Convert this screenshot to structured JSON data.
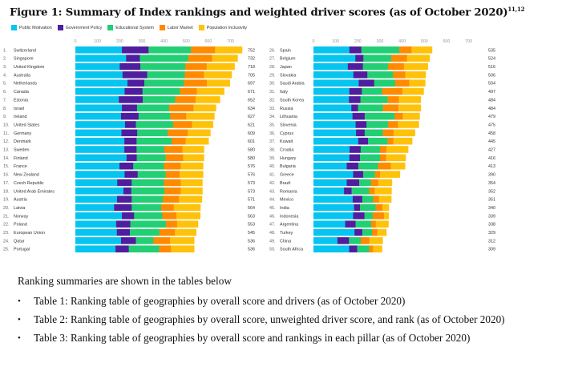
{
  "figure": {
    "title": "Figure 1: Summary of Index rankings and weighted driver scores (as of October 2020)",
    "footnote_refs": "11,12"
  },
  "legend": [
    {
      "name": "Public Motivation",
      "color": "#06c4f0"
    },
    {
      "name": "Government Policy",
      "color": "#4f1e9e"
    },
    {
      "name": "Educational System",
      "color": "#22cf74"
    },
    {
      "name": "Labor Market",
      "color": "#ff8a00"
    },
    {
      "name": "Population Inclusivity",
      "color": "#ffc20a"
    }
  ],
  "chart_data": {
    "type": "bar",
    "orientation": "horizontal",
    "stacked": true,
    "title": "Figure 1: Summary of Index rankings and weighted driver scores (as of October 2020)",
    "xlim": [
      0,
      700
    ],
    "xticks": [
      0,
      100,
      200,
      300,
      400,
      500,
      600,
      700
    ],
    "grid": false,
    "legend_position": "top-left",
    "series_names": [
      "Public Motivation",
      "Government Policy",
      "Educational System",
      "Labor Market",
      "Population Inclusivity"
    ],
    "panels": [
      {
        "rows": [
          {
            "rank": "1.",
            "name": "Switzerland",
            "total": 752,
            "values": [
              210,
              120,
              191,
              109,
              122
            ]
          },
          {
            "rank": "2.",
            "name": "Singapore",
            "total": 732,
            "values": [
              229,
              62,
              218,
              108,
              115
            ]
          },
          {
            "rank": "3.",
            "name": "United Kingdom",
            "total": 718,
            "values": [
              200,
              93,
              203,
              96,
              126
            ]
          },
          {
            "rank": "4.",
            "name": "Australia",
            "total": 705,
            "values": [
              213,
              111,
              169,
              87,
              125
            ]
          },
          {
            "rank": "5.",
            "name": "Netherlands",
            "total": 697,
            "values": [
              235,
              76,
              178,
              104,
              104
            ]
          },
          {
            "rank": "6.",
            "name": "Canada",
            "total": 671,
            "values": [
              222,
              81,
              168,
              77,
              123
            ]
          },
          {
            "rank": "7.",
            "name": "Estonia",
            "total": 652,
            "values": [
              196,
              108,
              146,
              92,
              110
            ]
          },
          {
            "rank": "8.",
            "name": "Israel",
            "total": 634,
            "values": [
              210,
              68,
              145,
              110,
              101
            ]
          },
          {
            "rank": "9.",
            "name": "Ireland",
            "total": 627,
            "values": [
              206,
              79,
              143,
              72,
              127
            ]
          },
          {
            "rank": "10.",
            "name": "United States",
            "total": 621,
            "values": [
              224,
              49,
              168,
              85,
              95
            ]
          },
          {
            "rank": "11.",
            "name": "Germany",
            "total": 609,
            "values": [
              208,
              71,
              137,
              91,
              102
            ]
          },
          {
            "rank": "12.",
            "name": "Denmark",
            "total": 601,
            "values": [
              221,
              55,
              158,
              63,
              104
            ]
          },
          {
            "rank": "13.",
            "name": "Sweden",
            "total": 580,
            "values": [
              221,
              55,
              125,
              82,
              97
            ]
          },
          {
            "rank": "14.",
            "name": "Finland",
            "total": 580,
            "values": [
              231,
              46,
              130,
              79,
              94
            ]
          },
          {
            "rank": "15.",
            "name": "France",
            "total": 576,
            "values": [
              199,
              62,
              138,
              76,
              101
            ]
          },
          {
            "rank": "16.",
            "name": "New Zealand",
            "total": 576,
            "values": [
              222,
              59,
              126,
              63,
              106
            ]
          },
          {
            "rank": "17.",
            "name": "Czech Republic",
            "total": 573,
            "values": [
              189,
              65,
              145,
              76,
              98
            ]
          },
          {
            "rank": "18.",
            "name": "United Arab Emirates",
            "total": 573,
            "values": [
              217,
              35,
              150,
              73,
              98
            ]
          },
          {
            "rank": "19.",
            "name": "Austria",
            "total": 571,
            "values": [
              188,
              66,
              140,
              73,
              104
            ]
          },
          {
            "rank": "20.",
            "name": "Latvia",
            "total": 564,
            "values": [
              175,
              79,
              133,
              57,
              120
            ]
          },
          {
            "rank": "21.",
            "name": "Norway",
            "total": 563,
            "values": [
              210,
              55,
              127,
              64,
              107
            ]
          },
          {
            "rank": "22.",
            "name": "Poland",
            "total": 553,
            "values": [
              184,
              64,
              160,
              51,
              94
            ]
          },
          {
            "rank": "23.",
            "name": "European Union",
            "total": 545,
            "values": [
              187,
              59,
              133,
              70,
              96
            ]
          },
          {
            "rank": "24.",
            "name": "Qatar",
            "total": 536,
            "values": [
              206,
              67,
              79,
              75,
              109
            ]
          },
          {
            "rank": "25.",
            "name": "Portugal",
            "total": 536,
            "values": [
              181,
              60,
              137,
              53,
              105
            ]
          }
        ]
      },
      {
        "rows": [
          {
            "rank": "26.",
            "name": "Spain",
            "total": 535,
            "values": [
              162,
              54,
              171,
              55,
              93
            ]
          },
          {
            "rank": "27.",
            "name": "Belgium",
            "total": 524,
            "values": [
              189,
              36,
              126,
              71,
              102
            ]
          },
          {
            "rank": "28.",
            "name": "Japan",
            "total": 516,
            "values": [
              155,
              68,
              113,
              72,
              108
            ]
          },
          {
            "rank": "29.",
            "name": "Slovakia",
            "total": 506,
            "values": [
              180,
              63,
              116,
              55,
              92
            ]
          },
          {
            "rank": "30.",
            "name": "Saudi Arabia",
            "total": 504,
            "values": [
              204,
              70,
              94,
              64,
              72
            ]
          },
          {
            "rank": "31.",
            "name": "Italy",
            "total": 497,
            "values": [
              162,
              56,
              92,
              91,
              96
            ]
          },
          {
            "rank": "32.",
            "name": "South Korea",
            "total": 484,
            "values": [
              160,
              52,
              122,
              51,
              99
            ]
          },
          {
            "rank": "33.",
            "name": "Russia",
            "total": 484,
            "values": [
              171,
              30,
              112,
              70,
              101
            ]
          },
          {
            "rank": "34.",
            "name": "Lithuania",
            "total": 479,
            "values": [
              176,
              55,
              134,
              38,
              76
            ]
          },
          {
            "rank": "35.",
            "name": "Slovenia",
            "total": 475,
            "values": [
              190,
              49,
              97,
              45,
              94
            ]
          },
          {
            "rank": "36.",
            "name": "Cyprus",
            "total": 458,
            "values": [
              192,
              39,
              82,
              48,
              97
            ]
          },
          {
            "rank": "37.",
            "name": "Kuwait",
            "total": 445,
            "values": [
              202,
              44,
              88,
              26,
              85
            ]
          },
          {
            "rank": "38.",
            "name": "Croatia",
            "total": 427,
            "values": [
              163,
              50,
              87,
              29,
              98
            ]
          },
          {
            "rank": "39.",
            "name": "Hungary",
            "total": 416,
            "values": [
              162,
              48,
              90,
              27,
              89
            ]
          },
          {
            "rank": "40.",
            "name": "Bulgaria",
            "total": 413,
            "values": [
              150,
              52,
              89,
              58,
              64
            ]
          },
          {
            "rank": "41.",
            "name": "Greece",
            "total": 390,
            "values": [
              179,
              45,
              53,
              23,
              90
            ]
          },
          {
            "rank": "42.",
            "name": "Brazil",
            "total": 354,
            "values": [
              150,
              56,
              53,
              33,
              62
            ]
          },
          {
            "rank": "43.",
            "name": "Romania",
            "total": 352,
            "values": [
              138,
              34,
              79,
              25,
              76
            ]
          },
          {
            "rank": "44.",
            "name": "Mexico",
            "total": 351,
            "values": [
              177,
              43,
              49,
              27,
              55
            ]
          },
          {
            "rank": "45.",
            "name": "India",
            "total": 340,
            "values": [
              183,
              27,
              70,
              31,
              29
            ]
          },
          {
            "rank": "46.",
            "name": "Indonesia",
            "total": 339,
            "values": [
              179,
              51,
              37,
              51,
              21
            ]
          },
          {
            "rank": "47.",
            "name": "Argentina",
            "total": 338,
            "values": [
              143,
              47,
              70,
              21,
              57
            ]
          },
          {
            "rank": "48.",
            "name": "Turkey",
            "total": 329,
            "values": [
              185,
              35,
              44,
              24,
              41
            ]
          },
          {
            "rank": "49.",
            "name": "China",
            "total": 312,
            "values": [
              108,
              52,
              53,
              39,
              60
            ]
          },
          {
            "rank": "50.",
            "name": "South Africa",
            "total": 309,
            "values": [
              161,
              36,
              54,
              18,
              40
            ]
          }
        ]
      }
    ]
  },
  "body": {
    "intro": "Ranking summaries are shown in the tables below",
    "bullet_glyph": "•",
    "items": [
      "Table 1: Ranking table of geographies by overall score and drivers (as of October 2020)",
      "Table 2: Ranking table of geographies by overall score, unweighted driver score, and rank (as of October 2020)",
      "Table 3: Ranking table of geographies by overall score and rankings in each pillar (as of October 2020)"
    ]
  }
}
